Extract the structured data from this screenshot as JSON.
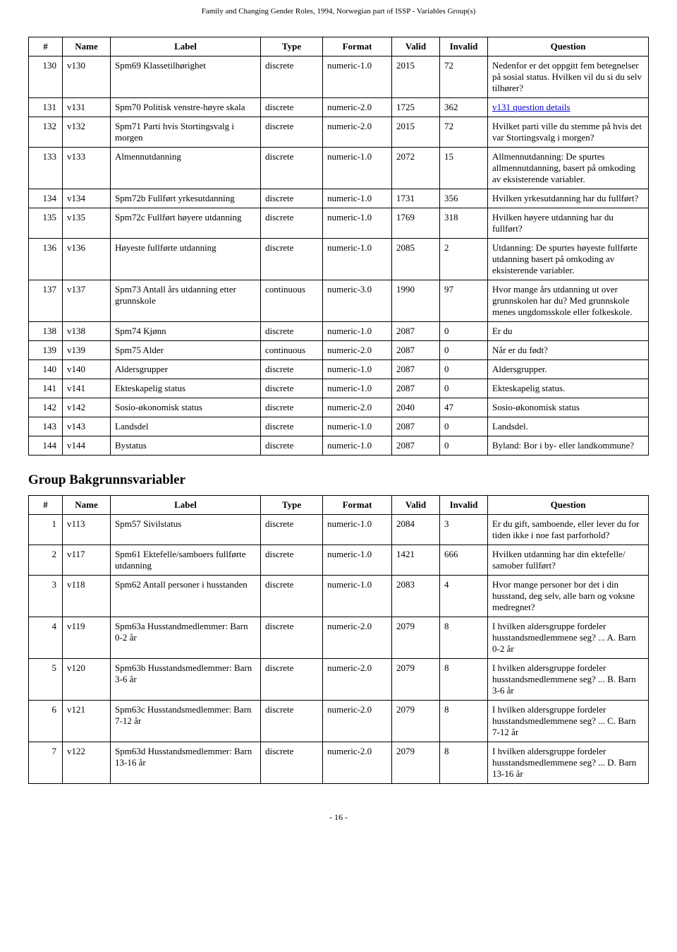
{
  "header": "Family and Changing Gender Roles, 1994, Norwegian part of ISSP - Variables Group(s)",
  "footer": "- 16 -",
  "columns": [
    "#",
    "Name",
    "Label",
    "Type",
    "Format",
    "Valid",
    "Invalid",
    "Question"
  ],
  "group2_title": "Group Bakgrunnsvariabler",
  "table1": [
    {
      "n": "130",
      "name": "v130",
      "label": "Spm69 Klassetilhørighet",
      "type": "discrete",
      "format": "numeric-1.0",
      "valid": "2015",
      "invalid": "72",
      "q": "Nedenfor er det oppgitt fem betegnelser på sosial status. Hvilken vil du si du selv tilhører?"
    },
    {
      "n": "131",
      "name": "v131",
      "label": "Spm70 Politisk venstre-høyre skala",
      "type": "discrete",
      "format": "numeric-2.0",
      "valid": "1725",
      "invalid": "362",
      "q": "",
      "link": "v131 question details"
    },
    {
      "n": "132",
      "name": "v132",
      "label": "Spm71 Parti hvis Stortingsvalg i morgen",
      "type": "discrete",
      "format": "numeric-2.0",
      "valid": "2015",
      "invalid": "72",
      "q": "Hvilket parti ville du stemme på hvis det var Stortingsvalg i morgen?"
    },
    {
      "n": "133",
      "name": "v133",
      "label": "Almennutdanning",
      "type": "discrete",
      "format": "numeric-1.0",
      "valid": "2072",
      "invalid": "15",
      "q": "Allmennutdanning: De spurtes allmennutdanning, basert på omkoding av eksisterende variabler."
    },
    {
      "n": "134",
      "name": "v134",
      "label": "Spm72b Fullført yrkesutdanning",
      "type": "discrete",
      "format": "numeric-1.0",
      "valid": "1731",
      "invalid": "356",
      "q": "Hvilken yrkesutdanning har du fullført?"
    },
    {
      "n": "135",
      "name": "v135",
      "label": "Spm72c Fullført høyere utdanning",
      "type": "discrete",
      "format": "numeric-1.0",
      "valid": "1769",
      "invalid": "318",
      "q": "Hvilken høyere utdanning har du fullført?"
    },
    {
      "n": "136",
      "name": "v136",
      "label": "Høyeste fullførte utdanning",
      "type": "discrete",
      "format": "numeric-1.0",
      "valid": "2085",
      "invalid": "2",
      "q": "Utdanning: De spurtes høyeste fullførte utdanning basert på omkoding av eksisterende variabler."
    },
    {
      "n": "137",
      "name": "v137",
      "label": "Spm73 Antall års utdanning etter grunnskole",
      "type": "continuous",
      "format": "numeric-3.0",
      "valid": "1990",
      "invalid": "97",
      "q": "Hvor mange års utdanning ut over grunnskolen har du? Med grunnskole menes ungdomsskole eller folkeskole."
    },
    {
      "n": "138",
      "name": "v138",
      "label": "Spm74 Kjønn",
      "type": "discrete",
      "format": "numeric-1.0",
      "valid": "2087",
      "invalid": "0",
      "q": "Er du"
    },
    {
      "n": "139",
      "name": "v139",
      "label": "Spm75 Alder",
      "type": "continuous",
      "format": "numeric-2.0",
      "valid": "2087",
      "invalid": "0",
      "q": "Når er du født?"
    },
    {
      "n": "140",
      "name": "v140",
      "label": "Aldersgrupper",
      "type": "discrete",
      "format": "numeric-1.0",
      "valid": "2087",
      "invalid": "0",
      "q": "Aldersgrupper."
    },
    {
      "n": "141",
      "name": "v141",
      "label": "Ekteskapelig status",
      "type": "discrete",
      "format": "numeric-1.0",
      "valid": "2087",
      "invalid": "0",
      "q": "Ekteskapelig status."
    },
    {
      "n": "142",
      "name": "v142",
      "label": "Sosio-økonomisk status",
      "type": "discrete",
      "format": "numeric-2.0",
      "valid": "2040",
      "invalid": "47",
      "q": "Sosio-økonomisk status"
    },
    {
      "n": "143",
      "name": "v143",
      "label": "Landsdel",
      "type": "discrete",
      "format": "numeric-1.0",
      "valid": "2087",
      "invalid": "0",
      "q": "Landsdel."
    },
    {
      "n": "144",
      "name": "v144",
      "label": "Bystatus",
      "type": "discrete",
      "format": "numeric-1.0",
      "valid": "2087",
      "invalid": "0",
      "q": "Byland: Bor i by- eller landkommune?"
    }
  ],
  "table2": [
    {
      "n": "1",
      "name": "v113",
      "label": "Spm57 Sivilstatus",
      "type": "discrete",
      "format": "numeric-1.0",
      "valid": "2084",
      "invalid": "3",
      "q": "Er du gift, samboende, eller lever du for tiden ikke i noe fast parforhold?"
    },
    {
      "n": "2",
      "name": "v117",
      "label": "Spm61 Ektefelle/samboers fullførte utdanning",
      "type": "discrete",
      "format": "numeric-1.0",
      "valid": "1421",
      "invalid": "666",
      "q": "Hvilken utdanning har din ektefelle/ samober fullført?"
    },
    {
      "n": "3",
      "name": "v118",
      "label": "Spm62 Antall personer i husstanden",
      "type": "discrete",
      "format": "numeric-1.0",
      "valid": "2083",
      "invalid": "4",
      "q": "Hvor mange personer bor det i din husstand, deg selv, alle barn og voksne medregnet?"
    },
    {
      "n": "4",
      "name": "v119",
      "label": "Spm63a Husstandmedlemmer: Barn 0-2 år",
      "type": "discrete",
      "format": "numeric-2.0",
      "valid": "2079",
      "invalid": "8",
      "q": "I hvilken aldersgruppe fordeler husstandsmedlemmene seg? ... A. Barn 0-2 år"
    },
    {
      "n": "5",
      "name": "v120",
      "label": "Spm63b Husstandsmedlemmer: Barn 3-6 år",
      "type": "discrete",
      "format": "numeric-2.0",
      "valid": "2079",
      "invalid": "8",
      "q": "I hvilken aldersgruppe fordeler husstandsmedlemmene seg? ... B. Barn 3-6 år"
    },
    {
      "n": "6",
      "name": "v121",
      "label": "Spm63c Husstandsmedlemmer: Barn 7-12 år",
      "type": "discrete",
      "format": "numeric-2.0",
      "valid": "2079",
      "invalid": "8",
      "q": "I hvilken aldersgruppe fordeler husstandsmedlemmene seg? ... C. Barn 7-12 år"
    },
    {
      "n": "7",
      "name": "v122",
      "label": "Spm63d Husstandsmedlemmer: Barn 13-16 år",
      "type": "discrete",
      "format": "numeric-2.0",
      "valid": "2079",
      "invalid": "8",
      "q": "I hvilken aldersgruppe fordeler husstandsmedlemmene seg? ... D. Barn 13-16 år"
    }
  ]
}
